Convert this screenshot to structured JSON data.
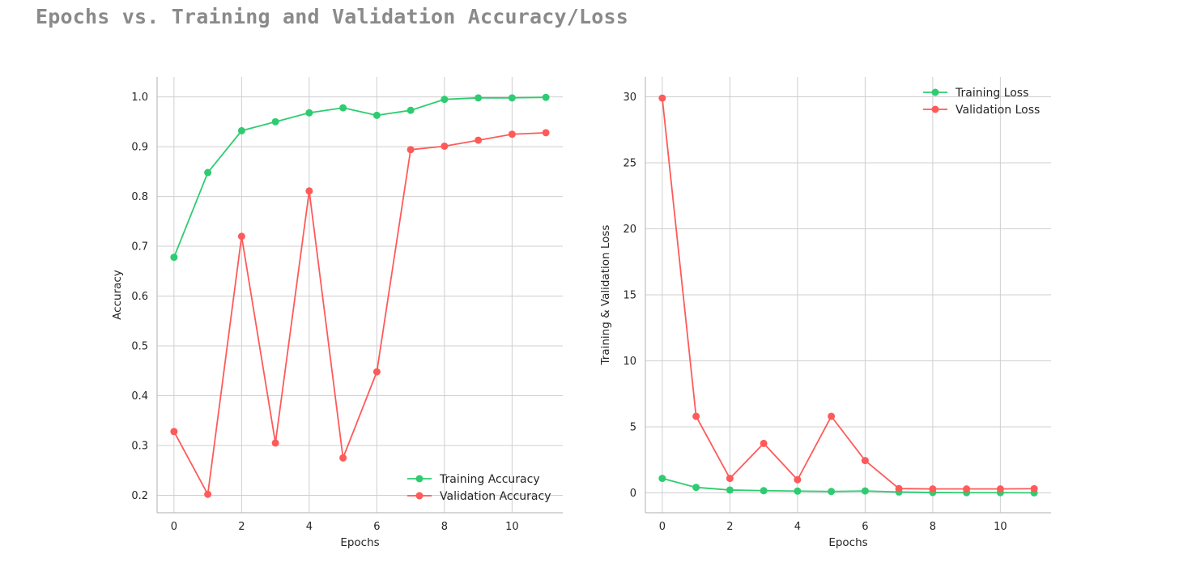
{
  "figure": {
    "title": "Epochs vs. Training and Validation Accuracy/Loss"
  },
  "colors": {
    "training": "#2ecc71",
    "validation": "#ff5a5a",
    "grid": "#cfcfcf",
    "axis": "#bdbdbd",
    "text": "#262626"
  },
  "chart_data": [
    {
      "type": "line",
      "xlabel": "Epochs",
      "ylabel": "Accuracy",
      "x": [
        0,
        1,
        2,
        3,
        4,
        5,
        6,
        7,
        8,
        9,
        10,
        11
      ],
      "xticks": [
        0,
        2,
        4,
        6,
        8,
        10
      ],
      "xticklabels": [
        "0",
        "2",
        "4",
        "6",
        "8",
        "10"
      ],
      "xlim": [
        -0.5,
        11.5
      ],
      "yticks": [
        0.2,
        0.3,
        0.4,
        0.5,
        0.6,
        0.7,
        0.8,
        0.9,
        1.0
      ],
      "yticklabels": [
        "0.2",
        "0.3",
        "0.4",
        "0.5",
        "0.6",
        "0.7",
        "0.8",
        "0.9",
        "1.0"
      ],
      "ylim": [
        0.165,
        1.04
      ],
      "grid": true,
      "legend_position": "bottom-right",
      "series": [
        {
          "name": "Training Accuracy",
          "color": "#2ecc71",
          "values": [
            0.678,
            0.848,
            0.932,
            0.95,
            0.968,
            0.978,
            0.963,
            0.973,
            0.995,
            0.998,
            0.998,
            0.999
          ]
        },
        {
          "name": "Validation Accuracy",
          "color": "#ff5a5a",
          "values": [
            0.328,
            0.202,
            0.72,
            0.305,
            0.811,
            0.275,
            0.448,
            0.894,
            0.901,
            0.913,
            0.925,
            0.928
          ]
        }
      ]
    },
    {
      "type": "line",
      "xlabel": "Epochs",
      "ylabel": "Training & Validation Loss",
      "x": [
        0,
        1,
        2,
        3,
        4,
        5,
        6,
        7,
        8,
        9,
        10,
        11
      ],
      "xticks": [
        0,
        2,
        4,
        6,
        8,
        10
      ],
      "xticklabels": [
        "0",
        "2",
        "4",
        "6",
        "8",
        "10"
      ],
      "xlim": [
        -0.5,
        11.5
      ],
      "yticks": [
        0,
        5,
        10,
        15,
        20,
        25,
        30
      ],
      "yticklabels": [
        "0",
        "5",
        "10",
        "15",
        "20",
        "25",
        "30"
      ],
      "ylim": [
        -1.5,
        31.5
      ],
      "grid": true,
      "legend_position": "top-right",
      "series": [
        {
          "name": "Training Loss",
          "color": "#2ecc71",
          "values": [
            1.1,
            0.42,
            0.22,
            0.17,
            0.14,
            0.11,
            0.15,
            0.07,
            0.03,
            0.02,
            0.02,
            0.01
          ]
        },
        {
          "name": "Validation Loss",
          "color": "#ff5a5a",
          "values": [
            29.9,
            5.8,
            1.1,
            3.75,
            1.0,
            5.8,
            2.45,
            0.33,
            0.3,
            0.3,
            0.3,
            0.32
          ]
        }
      ]
    }
  ]
}
